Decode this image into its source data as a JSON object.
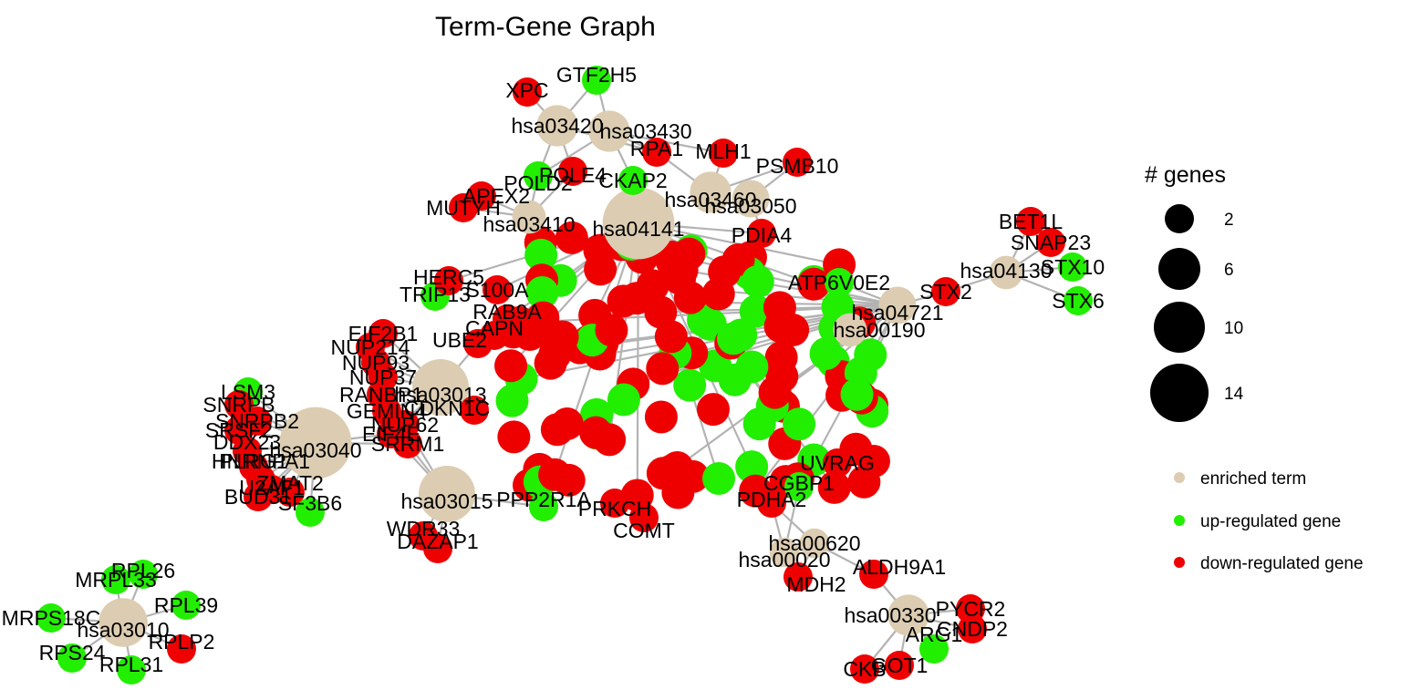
{
  "title": "Term-Gene Graph",
  "colors": {
    "term": "#dccdb2",
    "up": "#22ee00",
    "down": "#ee0000",
    "edge": "#b3b3b3"
  },
  "legend": {
    "size_title": "# genes",
    "size_items": [
      "2",
      "6",
      "10",
      "14"
    ],
    "color_items": [
      {
        "label": "enriched term",
        "type": "term"
      },
      {
        "label": "up-regulated gene",
        "type": "up"
      },
      {
        "label": "down-regulated gene",
        "type": "down"
      }
    ]
  },
  "terms": [
    {
      "id": "hsa03010",
      "genes": 8
    },
    {
      "id": "hsa03040",
      "genes": 14
    },
    {
      "id": "hsa03015",
      "genes": 10
    },
    {
      "id": "hsa03013",
      "genes": 10
    },
    {
      "id": "hsa03420",
      "genes": 6
    },
    {
      "id": "hsa03430",
      "genes": 6
    },
    {
      "id": "hsa03410",
      "genes": 4
    },
    {
      "id": "hsa04141",
      "genes": 14
    },
    {
      "id": "hsa03460",
      "genes": 6
    },
    {
      "id": "hsa03050",
      "genes": 5
    },
    {
      "id": "hsa04130",
      "genes": 4
    },
    {
      "id": "hsa04721",
      "genes": 5
    },
    {
      "id": "hsa00190",
      "genes": 4
    },
    {
      "id": "hsa00620",
      "genes": 3
    },
    {
      "id": "hsa00020",
      "genes": 3
    },
    {
      "id": "hsa00330",
      "genes": 6
    }
  ],
  "genes": [
    {
      "id": "GTF2H5",
      "type": "up"
    },
    {
      "id": "XPC",
      "type": "down"
    },
    {
      "id": "RPA1",
      "type": "down"
    },
    {
      "id": "MLH1",
      "type": "down"
    },
    {
      "id": "PSMB10",
      "type": "down"
    },
    {
      "id": "POLD2",
      "type": "up"
    },
    {
      "id": "POLE4",
      "type": "down"
    },
    {
      "id": "CKAP2",
      "type": "up"
    },
    {
      "id": "APEX2",
      "type": "down"
    },
    {
      "id": "MUTYH",
      "type": "down"
    },
    {
      "id": "PDIA4",
      "type": "down"
    },
    {
      "id": "BET1L",
      "type": "down"
    },
    {
      "id": "SNAP23",
      "type": "down"
    },
    {
      "id": "STX10",
      "type": "up"
    },
    {
      "id": "STX6",
      "type": "up"
    },
    {
      "id": "STX2",
      "type": "down"
    },
    {
      "id": "ATP6V0E2",
      "type": "up"
    },
    {
      "id": "TRIP13",
      "type": "up"
    },
    {
      "id": "HERC5",
      "type": "down"
    },
    {
      "id": "S100A",
      "type": "down"
    },
    {
      "id": "RAB9A",
      "type": "down"
    },
    {
      "id": "CAPN",
      "type": "down"
    },
    {
      "id": "EIF2B1",
      "type": "down"
    },
    {
      "id": "NUP214",
      "type": "down"
    },
    {
      "id": "NUP93",
      "type": "down"
    },
    {
      "id": "NUP37",
      "type": "down"
    },
    {
      "id": "RANBP1",
      "type": "down"
    },
    {
      "id": "GEMIN4",
      "type": "down"
    },
    {
      "id": "NUP62",
      "type": "down"
    },
    {
      "id": "CDKN1C",
      "type": "down"
    },
    {
      "id": "UBE2",
      "type": "down"
    },
    {
      "id": "LSM3",
      "type": "up"
    },
    {
      "id": "SNRPB",
      "type": "down"
    },
    {
      "id": "SNRPB2",
      "type": "down"
    },
    {
      "id": "SRSF2",
      "type": "down"
    },
    {
      "id": "DDX23",
      "type": "down"
    },
    {
      "id": "PLRG1",
      "type": "down"
    },
    {
      "id": "HNRNPA1",
      "type": "down"
    },
    {
      "id": "BUD31",
      "type": "down"
    },
    {
      "id": "U2AF1",
      "type": "down"
    },
    {
      "id": "ZMAT2",
      "type": "down"
    },
    {
      "id": "SF3B6",
      "type": "up"
    },
    {
      "id": "EIF4E",
      "type": "down"
    },
    {
      "id": "SRRM1",
      "type": "down"
    },
    {
      "id": "WDR33",
      "type": "down"
    },
    {
      "id": "DAZAP1",
      "type": "down"
    },
    {
      "id": "PPP2R1A",
      "type": "up"
    },
    {
      "id": "PRKCH",
      "type": "down"
    },
    {
      "id": "COMT",
      "type": "down"
    },
    {
      "id": "UVRAG",
      "type": "down"
    },
    {
      "id": "CGBP1",
      "type": "up"
    },
    {
      "id": "PDHA2",
      "type": "down"
    },
    {
      "id": "ALDH9A1",
      "type": "down"
    },
    {
      "id": "MDH2",
      "type": "down"
    },
    {
      "id": "PYCR2",
      "type": "down"
    },
    {
      "id": "CNDP2",
      "type": "down"
    },
    {
      "id": "ARG1",
      "type": "up"
    },
    {
      "id": "GOT1",
      "type": "down"
    },
    {
      "id": "CKB",
      "type": "down"
    },
    {
      "id": "MRPL33",
      "type": "up"
    },
    {
      "id": "RPL26",
      "type": "up"
    },
    {
      "id": "RPL39",
      "type": "up"
    },
    {
      "id": "MRPS18C",
      "type": "up"
    },
    {
      "id": "RPLP2",
      "type": "down"
    },
    {
      "id": "RPS24",
      "type": "up"
    },
    {
      "id": "RPL31",
      "type": "up"
    }
  ]
}
